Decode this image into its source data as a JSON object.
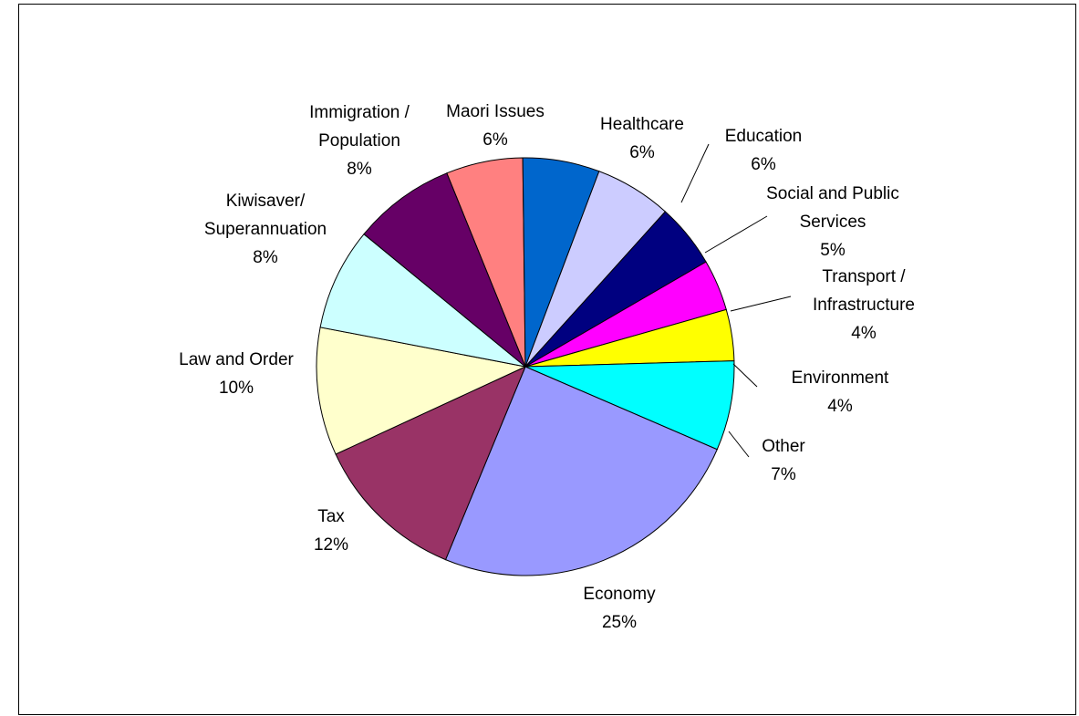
{
  "chart_data": {
    "type": "pie",
    "title": "",
    "slices": [
      {
        "label": [
          "Maori Issues"
        ],
        "pct_label": "6%",
        "value": 6,
        "color": "#FF8080"
      },
      {
        "label": [
          "Healthcare"
        ],
        "pct_label": "6%",
        "value": 6,
        "color": "#0066CC"
      },
      {
        "label": [
          "Education"
        ],
        "pct_label": "6%",
        "value": 6,
        "color": "#CCCCFF"
      },
      {
        "label": [
          "Social and Public",
          "Services"
        ],
        "pct_label": "5%",
        "value": 5,
        "color": "#000080"
      },
      {
        "label": [
          "Transport /",
          "Infrastructure"
        ],
        "pct_label": "4%",
        "value": 4,
        "color": "#FF00FF"
      },
      {
        "label": [
          "Environment"
        ],
        "pct_label": "4%",
        "value": 4,
        "color": "#FFFF00"
      },
      {
        "label": [
          "Other"
        ],
        "pct_label": "7%",
        "value": 7,
        "color": "#00FFFF"
      },
      {
        "label": [
          "Economy"
        ],
        "pct_label": "25%",
        "value": 25,
        "color": "#9999FF"
      },
      {
        "label": [
          "Tax"
        ],
        "pct_label": "12%",
        "value": 12,
        "color": "#993366"
      },
      {
        "label": [
          "Law and Order"
        ],
        "pct_label": "10%",
        "value": 10,
        "color": "#FFFFCC"
      },
      {
        "label": [
          "Kiwisaver/",
          "Superannuation"
        ],
        "pct_label": "8%",
        "value": 8,
        "color": "#CCFFFF"
      },
      {
        "label": [
          "Immigration /",
          "Population"
        ],
        "pct_label": "8%",
        "value": 8,
        "color": "#660066"
      }
    ],
    "start_angle_deg": -22.1,
    "direction": "clockwise",
    "legend": "none",
    "labels": "outside"
  }
}
